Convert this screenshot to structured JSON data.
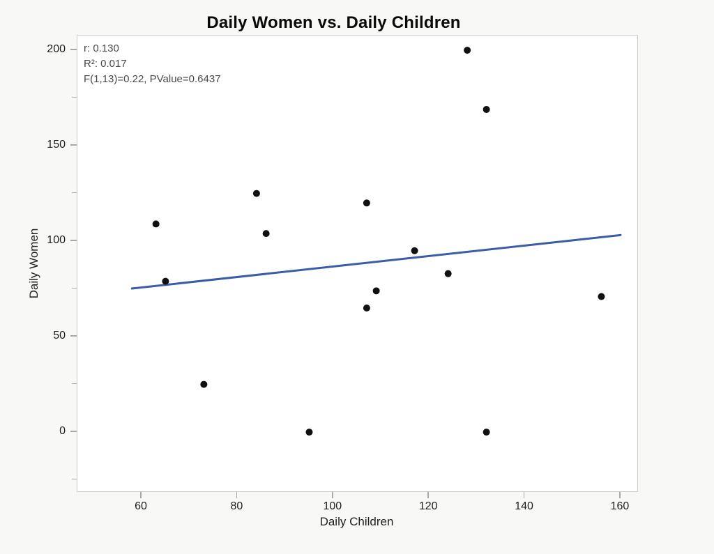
{
  "chart_data": {
    "type": "scatter",
    "title": "Daily Women vs. Daily Children",
    "xlabel": "Daily Children",
    "ylabel": "Daily Women",
    "annotation_lines": [
      "r: 0.130",
      "R²: 0.017",
      "F(1,13)=0.22, PValue=0.6437"
    ],
    "xlim": [
      46.6,
      163.5
    ],
    "ylim": [
      -31,
      207.7
    ],
    "x_ticks": [
      60,
      80,
      100,
      120,
      140,
      160
    ],
    "y_ticks_major": [
      0,
      50,
      100,
      150,
      200
    ],
    "y_ticks_minor": [
      -25,
      25,
      75,
      125,
      175
    ],
    "grid": "off",
    "points": [
      {
        "x": 63,
        "y": 109
      },
      {
        "x": 65,
        "y": 79
      },
      {
        "x": 73,
        "y": 25
      },
      {
        "x": 84,
        "y": 125
      },
      {
        "x": 86,
        "y": 104
      },
      {
        "x": 95,
        "y": 0
      },
      {
        "x": 107,
        "y": 120
      },
      {
        "x": 107,
        "y": 65
      },
      {
        "x": 109,
        "y": 74
      },
      {
        "x": 117,
        "y": 95
      },
      {
        "x": 124,
        "y": 83
      },
      {
        "x": 128,
        "y": 200
      },
      {
        "x": 132,
        "y": 169
      },
      {
        "x": 132,
        "y": 0
      },
      {
        "x": 156,
        "y": 71
      }
    ],
    "trend_line": {
      "x1": 58,
      "y1": 75.2,
      "x2": 160,
      "y2": 103.2
    },
    "colors": {
      "background": "#f8f8f7",
      "plot_background": "#ffffff",
      "frame": "#cccccc",
      "tick": "#a8a8a8",
      "point": "#111111",
      "trend": "#3b5da8",
      "title_text": "#0a0a0a",
      "stats_text": "#4a4a4a"
    }
  }
}
